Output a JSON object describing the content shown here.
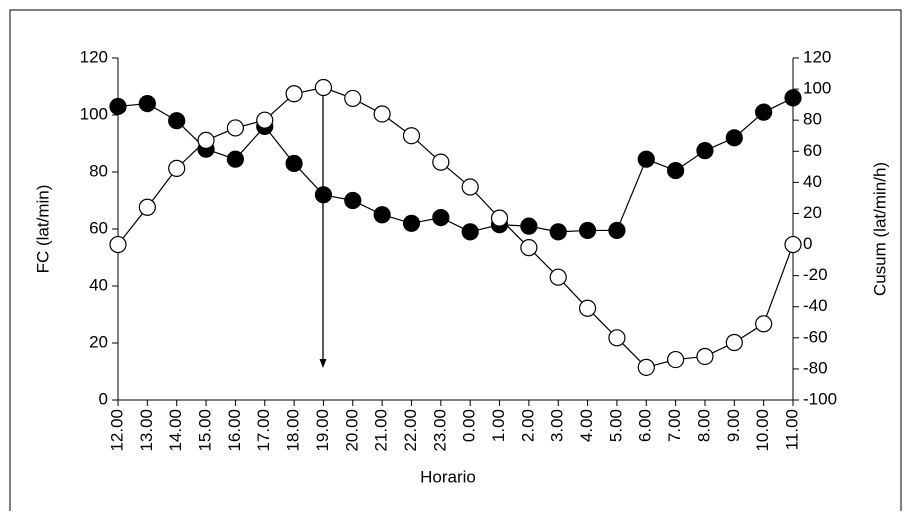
{
  "chart_data": {
    "type": "line",
    "xlabel": "Horario",
    "ylabel": "FC (lat/min)",
    "y2label": "Cusum (lat/min/h)",
    "categories": [
      "12.00",
      "13.00",
      "14.00",
      "15.00",
      "16.00",
      "17.00",
      "18.00",
      "19.00",
      "20.00",
      "21.00",
      "22.00",
      "23.00",
      "0.00",
      "1.00",
      "2.00",
      "3.00",
      "4.00",
      "5.00",
      "6.00",
      "7.00",
      "8.00",
      "9.00",
      "10.00",
      "11.00"
    ],
    "series": [
      {
        "color": "#000000",
        "marker_fill": "#000000",
        "axis": "y",
        "values": [
          103,
          104,
          98,
          88,
          84.5,
          96,
          83,
          72,
          70,
          65,
          62,
          64,
          59,
          61.5,
          61,
          59,
          59.5,
          59.5,
          84.5,
          80.5,
          87.5,
          92,
          101,
          106
        ]
      },
      {
        "color": "#000000",
        "marker_fill": "#ffffff",
        "axis": "y2",
        "values": [
          0,
          24,
          49,
          67,
          75,
          80,
          97,
          101,
          94,
          84,
          70,
          53,
          37,
          17,
          -2,
          -21,
          -41,
          -60,
          -79,
          -74,
          -72,
          -63,
          -51,
          0
        ]
      }
    ],
    "ylim": [
      0,
      120
    ],
    "yticks": [
      0,
      20,
      40,
      60,
      80,
      100,
      120
    ],
    "y2lim": [
      -100,
      120
    ],
    "y2ticks": [
      -100,
      -80,
      -60,
      -40,
      -20,
      0,
      20,
      40,
      60,
      80,
      100,
      120
    ]
  }
}
